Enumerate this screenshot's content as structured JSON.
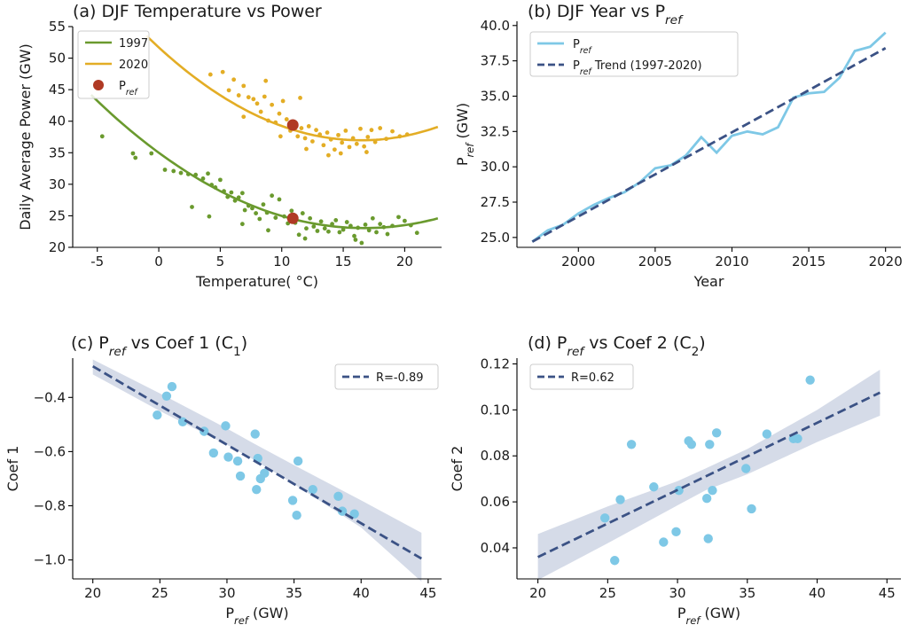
{
  "colors": {
    "green_1997": "#6a9a2e",
    "yellow_2020": "#e3ad25",
    "pref_marker": "#b03a24",
    "pref_line": "#7ec8e6",
    "trend": "#3b5285",
    "scatter": "#7ec8e6",
    "band": "#c7cfe0"
  },
  "chart_data": [
    {
      "id": "a",
      "type": "scatter",
      "title_prefix": "(a) DJF Temperature vs Power",
      "xlabel": "Temperature( °C)",
      "ylabel": "Daily Average Power (GW)",
      "xlim": [
        -7.0,
        23.0
      ],
      "ylim": [
        20,
        55
      ],
      "xticks": [
        -5,
        0,
        5,
        10,
        15,
        20
      ],
      "yticks": [
        20,
        25,
        30,
        35,
        40,
        45,
        50,
        55
      ],
      "legend": {
        "placement": "top-left",
        "items": [
          "1997",
          "2020",
          "P"
        ],
        "sub": "ref"
      },
      "fits": [
        {
          "name": "1997",
          "color": "green_1997",
          "coef": [
            0.0428,
            -1.43,
            35.0
          ],
          "xrange": [
            -5.5,
            22.7
          ]
        },
        {
          "name": "2020",
          "color": "yellow_2020",
          "coef": [
            0.0544,
            -1.79,
            51.7
          ],
          "xrange": [
            -1.0,
            22.7
          ]
        }
      ],
      "pref_points": [
        {
          "x": 10.9,
          "y": 24.6
        },
        {
          "x": 10.9,
          "y": 39.4
        }
      ],
      "scatter_1997": [
        [
          -4.6,
          37.6
        ],
        [
          -2.1,
          34.9
        ],
        [
          -1.9,
          34.2
        ],
        [
          -0.6,
          34.9
        ],
        [
          0.5,
          32.3
        ],
        [
          1.2,
          32.1
        ],
        [
          1.8,
          31.8
        ],
        [
          2.4,
          31.6
        ],
        [
          3.0,
          31.5
        ],
        [
          3.6,
          30.9
        ],
        [
          4.0,
          31.7
        ],
        [
          4.3,
          29.9
        ],
        [
          4.6,
          29.5
        ],
        [
          5.0,
          30.7
        ],
        [
          5.3,
          28.9
        ],
        [
          5.6,
          28.0
        ],
        [
          5.9,
          28.7
        ],
        [
          6.2,
          27.4
        ],
        [
          6.5,
          27.9
        ],
        [
          6.8,
          28.6
        ],
        [
          7.0,
          25.9
        ],
        [
          7.3,
          26.6
        ],
        [
          7.6,
          26.2
        ],
        [
          7.9,
          25.4
        ],
        [
          8.2,
          24.5
        ],
        [
          8.5,
          26.8
        ],
        [
          8.8,
          25.5
        ],
        [
          9.2,
          28.2
        ],
        [
          9.5,
          24.7
        ],
        [
          9.8,
          27.6
        ],
        [
          10.2,
          24.9
        ],
        [
          10.5,
          23.8
        ],
        [
          10.8,
          25.8
        ],
        [
          11.1,
          23.9
        ],
        [
          11.4,
          22.0
        ],
        [
          11.7,
          25.4
        ],
        [
          12.0,
          23.0
        ],
        [
          12.3,
          24.6
        ],
        [
          12.6,
          23.3
        ],
        [
          12.9,
          22.6
        ],
        [
          13.2,
          24.1
        ],
        [
          13.5,
          23.0
        ],
        [
          13.8,
          22.5
        ],
        [
          14.1,
          23.7
        ],
        [
          14.4,
          24.3
        ],
        [
          14.7,
          22.4
        ],
        [
          15.0,
          22.8
        ],
        [
          15.3,
          24.0
        ],
        [
          15.6,
          23.4
        ],
        [
          15.9,
          21.8
        ],
        [
          16.2,
          23.1
        ],
        [
          16.5,
          20.7
        ],
        [
          16.8,
          23.6
        ],
        [
          17.1,
          22.7
        ],
        [
          17.4,
          24.6
        ],
        [
          17.7,
          22.4
        ],
        [
          18.0,
          23.7
        ],
        [
          18.3,
          23.2
        ],
        [
          18.6,
          22.1
        ],
        [
          19.0,
          23.4
        ],
        [
          19.5,
          24.8
        ],
        [
          20.0,
          24.2
        ],
        [
          20.5,
          23.5
        ],
        [
          21.0,
          22.3
        ],
        [
          4.1,
          24.9
        ],
        [
          2.7,
          26.4
        ],
        [
          6.8,
          23.7
        ],
        [
          8.9,
          22.7
        ],
        [
          11.9,
          21.4
        ],
        [
          16.0,
          21.2
        ]
      ],
      "scatter_2020": [
        [
          4.2,
          47.4
        ],
        [
          5.2,
          47.8
        ],
        [
          5.7,
          44.9
        ],
        [
          6.1,
          46.6
        ],
        [
          6.5,
          44.1
        ],
        [
          6.9,
          45.6
        ],
        [
          7.3,
          43.8
        ],
        [
          7.7,
          43.5
        ],
        [
          8.0,
          42.8
        ],
        [
          8.3,
          41.5
        ],
        [
          8.6,
          43.9
        ],
        [
          8.9,
          40.1
        ],
        [
          9.2,
          42.6
        ],
        [
          9.5,
          39.8
        ],
        [
          9.8,
          41.2
        ],
        [
          10.1,
          43.2
        ],
        [
          10.4,
          40.3
        ],
        [
          10.7,
          38.5
        ],
        [
          11.0,
          39.9
        ],
        [
          11.3,
          37.6
        ],
        [
          11.6,
          38.9
        ],
        [
          11.9,
          37.3
        ],
        [
          12.2,
          39.2
        ],
        [
          12.5,
          36.8
        ],
        [
          12.8,
          38.6
        ],
        [
          13.1,
          37.9
        ],
        [
          13.4,
          36.2
        ],
        [
          13.7,
          38.2
        ],
        [
          14.0,
          37.1
        ],
        [
          14.3,
          35.5
        ],
        [
          14.6,
          37.8
        ],
        [
          14.9,
          36.6
        ],
        [
          15.2,
          38.5
        ],
        [
          15.5,
          35.9
        ],
        [
          15.8,
          37.3
        ],
        [
          16.1,
          36.4
        ],
        [
          16.4,
          38.8
        ],
        [
          16.7,
          36.0
        ],
        [
          17.0,
          37.5
        ],
        [
          17.3,
          38.6
        ],
        [
          17.6,
          36.7
        ],
        [
          18.0,
          38.9
        ],
        [
          18.5,
          37.2
        ],
        [
          19.0,
          38.4
        ],
        [
          19.6,
          37.6
        ],
        [
          20.2,
          37.9
        ],
        [
          8.7,
          46.4
        ],
        [
          12.0,
          35.6
        ],
        [
          14.8,
          34.9
        ],
        [
          9.9,
          37.6
        ],
        [
          11.5,
          43.7
        ],
        [
          6.9,
          40.7
        ],
        [
          13.8,
          34.6
        ],
        [
          16.9,
          35.1
        ]
      ]
    },
    {
      "id": "b",
      "type": "line",
      "title_prefix": "(b) DJF Year vs P",
      "title_sub": "ref",
      "xlabel": "Year",
      "ylabel": "P",
      "ylabel_sub": "ref",
      "ylabel_suffix": " (GW)",
      "xlim": [
        1996.0,
        2021.0
      ],
      "ylim": [
        24.3,
        40.3
      ],
      "xticks": [
        2000,
        2005,
        2010,
        2015,
        2020
      ],
      "yticks": [
        "25.0",
        "27.5",
        "30.0",
        "32.5",
        "35.0",
        "37.5",
        "40.0"
      ],
      "legend": {
        "placement": "top-left",
        "items": [
          {
            "main": "P",
            "sub": "ref",
            "rest": ""
          },
          {
            "main": "P",
            "sub": "ref",
            "rest": " Trend (1997-2020)"
          }
        ]
      },
      "series": [
        {
          "name": "Pref",
          "x": [
            1997,
            1998,
            1999,
            2000,
            2001,
            2002,
            2003,
            2004,
            2005,
            2006,
            2007,
            2008,
            2009,
            2010,
            2011,
            2012,
            2013,
            2014,
            2015,
            2016,
            2017,
            2018,
            2019,
            2020
          ],
          "y": [
            24.7,
            25.5,
            25.9,
            26.7,
            27.3,
            27.8,
            28.2,
            28.9,
            29.9,
            30.1,
            30.8,
            32.1,
            31.0,
            32.2,
            32.5,
            32.3,
            32.8,
            34.9,
            35.2,
            35.3,
            36.3,
            38.2,
            38.5,
            39.5
          ]
        },
        {
          "name": "Pref Trend (1997-2020)",
          "x": [
            1997,
            2020
          ],
          "y": [
            24.7,
            38.4
          ]
        }
      ]
    },
    {
      "id": "c",
      "type": "scatter",
      "title_prefix": "(c) P",
      "title_sub": "ref",
      "title_suffix": " vs Coef 1 (C",
      "title_sub2": "1",
      "title_end": ")",
      "xlabel": "P",
      "xlabel_sub": "ref",
      "xlabel_suffix": " (GW)",
      "ylabel": "Coef 1",
      "xlim": [
        18.5,
        46.0
      ],
      "ylim": [
        -1.07,
        -0.255
      ],
      "xticks": [
        20,
        25,
        30,
        35,
        40,
        45
      ],
      "yticks": [
        -1.0,
        -0.8,
        -0.6,
        -0.4
      ],
      "ytick_labels": [
        "−1.0",
        "−0.8",
        "−0.6",
        "−0.4"
      ],
      "legend": {
        "placement": "top-right",
        "label": "R=-0.89"
      },
      "trend": {
        "x": [
          20,
          44.5
        ],
        "y": [
          -0.285,
          -0.995
        ]
      },
      "band": {
        "upper": [
          [
            20,
            -0.26
          ],
          [
            25,
            -0.385
          ],
          [
            30,
            -0.515
          ],
          [
            32,
            -0.57
          ],
          [
            35,
            -0.65
          ],
          [
            40,
            -0.78
          ],
          [
            44.5,
            -0.9
          ]
        ],
        "lower": [
          [
            20,
            -0.315
          ],
          [
            25,
            -0.45
          ],
          [
            30,
            -0.575
          ],
          [
            32,
            -0.63
          ],
          [
            35,
            -0.72
          ],
          [
            40,
            -0.88
          ],
          [
            44.5,
            -1.08
          ]
        ]
      },
      "points": [
        [
          24.8,
          -0.465
        ],
        [
          25.5,
          -0.395
        ],
        [
          25.9,
          -0.36
        ],
        [
          26.7,
          -0.49
        ],
        [
          28.3,
          -0.525
        ],
        [
          29.0,
          -0.605
        ],
        [
          29.9,
          -0.505
        ],
        [
          30.1,
          -0.62
        ],
        [
          30.8,
          -0.635
        ],
        [
          31.0,
          -0.69
        ],
        [
          32.1,
          -0.535
        ],
        [
          32.2,
          -0.74
        ],
        [
          32.3,
          -0.625
        ],
        [
          32.5,
          -0.7
        ],
        [
          32.8,
          -0.68
        ],
        [
          34.9,
          -0.78
        ],
        [
          35.2,
          -0.835
        ],
        [
          35.3,
          -0.635
        ],
        [
          36.4,
          -0.74
        ],
        [
          38.3,
          -0.765
        ],
        [
          38.6,
          -0.82
        ],
        [
          39.5,
          -0.83
        ]
      ]
    },
    {
      "id": "d",
      "type": "scatter",
      "title_prefix": "(d) P",
      "title_sub": "ref",
      "title_suffix": " vs Coef 2 (C",
      "title_sub2": "2",
      "title_end": ")",
      "xlabel": "P",
      "xlabel_sub": "ref",
      "xlabel_suffix": " (GW)",
      "ylabel": "Coef 2",
      "xlim": [
        18.5,
        46.0
      ],
      "ylim": [
        0.0265,
        0.1225
      ],
      "xticks": [
        20,
        25,
        30,
        35,
        40,
        45
      ],
      "yticks": [
        0.04,
        0.06,
        0.08,
        0.1,
        0.12
      ],
      "ytick_labels": [
        "0.04",
        "0.06",
        "0.08",
        "0.10",
        "0.12"
      ],
      "legend": {
        "placement": "top-left",
        "label": "R=0.62"
      },
      "trend": {
        "x": [
          20,
          44.5
        ],
        "y": [
          0.036,
          0.1075
        ]
      },
      "band": {
        "upper": [
          [
            20,
            0.046
          ],
          [
            25,
            0.058
          ],
          [
            30,
            0.069
          ],
          [
            32,
            0.0745
          ],
          [
            35,
            0.083
          ],
          [
            40,
            0.1
          ],
          [
            44.5,
            0.1175
          ]
        ],
        "lower": [
          [
            20,
            0.026
          ],
          [
            25,
            0.042
          ],
          [
            30,
            0.0585
          ],
          [
            32,
            0.065
          ],
          [
            35,
            0.072
          ],
          [
            40,
            0.086
          ],
          [
            44.5,
            0.0975
          ]
        ]
      },
      "points": [
        [
          24.8,
          0.053
        ],
        [
          25.5,
          0.0345
        ],
        [
          25.9,
          0.061
        ],
        [
          26.7,
          0.085
        ],
        [
          28.3,
          0.0665
        ],
        [
          29.0,
          0.0425
        ],
        [
          29.9,
          0.047
        ],
        [
          30.1,
          0.065
        ],
        [
          30.8,
          0.0865
        ],
        [
          31.0,
          0.085
        ],
        [
          32.1,
          0.0615
        ],
        [
          32.2,
          0.044
        ],
        [
          32.3,
          0.085
        ],
        [
          32.5,
          0.065
        ],
        [
          32.8,
          0.09
        ],
        [
          34.9,
          0.0745
        ],
        [
          35.3,
          0.057
        ],
        [
          36.4,
          0.0895
        ],
        [
          38.3,
          0.0875
        ],
        [
          38.6,
          0.0875
        ],
        [
          39.5,
          0.113
        ]
      ]
    }
  ]
}
